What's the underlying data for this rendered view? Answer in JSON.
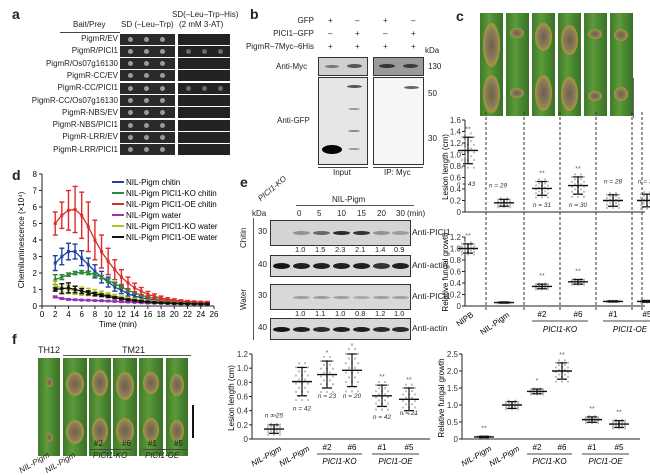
{
  "panels": {
    "a": {
      "label": "a",
      "header_baitprey": "Bait/Prey",
      "header_col1": "SD (–Leu–Trp)",
      "header_col2_line1": "SD(–Leu–Trp–His)",
      "header_col2_line2": "(2 mM 3-AT)",
      "rows": [
        {
          "label": "PigmR/EV",
          "growth_selective": false
        },
        {
          "label": "PigmR/PICI1",
          "growth_selective": true
        },
        {
          "label": "PigmR/Os07g16130",
          "growth_selective": false
        },
        {
          "label": "PigmR-CC/EV",
          "growth_selective": false
        },
        {
          "label": "PigmR-CC/PICI1",
          "growth_selective": true
        },
        {
          "label": "PigmR-CC/Os07g16130",
          "growth_selective": false
        },
        {
          "label": "PigmR-NBS/EV",
          "growth_selective": false
        },
        {
          "label": "PigmR-NBS/PICI1",
          "growth_selective": false
        },
        {
          "label": "PigmR-LRR/EV",
          "growth_selective": false
        },
        {
          "label": "PigmR-LRR/PICI1",
          "growth_selective": false
        }
      ]
    },
    "b": {
      "label": "b",
      "row_labels": [
        "GFP",
        "PICI1–GFP",
        "PigmR–7Myc–6His"
      ],
      "signs": [
        [
          "+",
          "–",
          "+",
          "–"
        ],
        [
          "–",
          "+",
          "–",
          "+"
        ],
        [
          "+",
          "+",
          "+",
          "+"
        ]
      ],
      "kda_label": "kDa",
      "markers": [
        "130",
        "50",
        "30"
      ],
      "blot_labels": [
        "Anti-Myc",
        "Anti-GFP"
      ],
      "bottom_labels": [
        "Input",
        "IP: Myc"
      ]
    },
    "c": {
      "label": "c",
      "lesion_chart": {
        "ylabel": "Lesion length (cm)",
        "yticks": [
          "0",
          "0.2",
          "0.4",
          "0.6",
          "0.8",
          "1.0",
          "1.2",
          "1.4",
          "1.6"
        ],
        "ylim": [
          0,
          1.6
        ]
      },
      "fungal_chart": {
        "ylabel": "Relative fungal growth",
        "yticks": [
          "0",
          "0.2",
          "0.4",
          "0.6",
          "0.8",
          "1.0",
          "1.2"
        ],
        "ylim": [
          0,
          1.2
        ]
      },
      "xlabels": [
        "NIPB",
        "NIL-Pigm",
        "#2",
        "#6",
        "#1",
        "#5"
      ],
      "group_labels": [
        "PICI1-KO",
        "PICI1-OE"
      ]
    },
    "d": {
      "label": "d",
      "xlabel": "Time (min)",
      "ylabel": "Chemiluminescence (×10⁴)"
    },
    "e": {
      "label": "e",
      "kda_label": "kDa",
      "ko_label": "PICI1-KO",
      "nil_label": "NIL-Pigm",
      "times": [
        "0",
        "5",
        "10",
        "15",
        "20",
        "30"
      ],
      "time_unit": "(min)",
      "chitin_label": "Chitin",
      "water_label": "Water",
      "markers": [
        "30",
        "40",
        "30",
        "40"
      ],
      "blot_labels": [
        "Anti-PICI1",
        "Anti-actin",
        "Anti-PICI1",
        "Anti-actin"
      ],
      "chitin_ratios": [
        "1.0",
        "1.5",
        "2.3",
        "2.1",
        "1.4",
        "0.9"
      ],
      "water_ratios": [
        "1.0",
        "1.1",
        "1.0",
        "0.8",
        "1.2",
        "1.0"
      ]
    },
    "f": {
      "label": "f",
      "th12": "TH12",
      "tm21": "TM21",
      "xlabels": [
        "NIL-Pigm",
        "NIL-Pigm",
        "#2",
        "#6",
        "#1",
        "#5"
      ],
      "group_labels": [
        "PICI1-KO",
        "PICI1-OE"
      ],
      "lesion_ylabel": "Lesion length (cm)",
      "lesion_yticks": [
        "0",
        "0.2",
        "0.4",
        "0.6",
        "0.8",
        "1.0",
        "1.2"
      ],
      "fungal_ylabel": "Relative fungal growth",
      "fungal_yticks": [
        "0",
        "0.5",
        "1.0",
        "1.5",
        "2.0",
        "2.5"
      ]
    }
  },
  "chart_data": [
    {
      "id": "c-lesion",
      "type": "scatter",
      "title": "",
      "xlabel": "",
      "ylabel": "Lesion length (cm)",
      "ylim": [
        0,
        1.6
      ],
      "categories": [
        "NIPB",
        "NIL-Pigm",
        "PICI1-KO #2",
        "PICI1-KO #6",
        "PICI1-OE #1",
        "PICI1-OE #5"
      ],
      "mean": [
        1.07,
        0.16,
        0.41,
        0.46,
        0.2,
        0.2
      ],
      "sd": [
        0.23,
        0.06,
        0.12,
        0.15,
        0.1,
        0.11
      ],
      "n": [
        "n = 43",
        "n = 29",
        "n = 31",
        "n = 30",
        "n = 28",
        "n = 38"
      ],
      "significance": [
        "**",
        "",
        "**",
        "**",
        "",
        ""
      ]
    },
    {
      "id": "c-fungal",
      "type": "scatter",
      "ylabel": "Relative fungal growth",
      "ylim": [
        0,
        1.2
      ],
      "categories": [
        "NIPB",
        "NIL-Pigm",
        "PICI1-KO #2",
        "PICI1-KO #6",
        "PICI1-OE #1",
        "PICI1-OE #5"
      ],
      "mean": [
        1.0,
        0.06,
        0.34,
        0.42,
        0.08,
        0.08
      ],
      "sd": [
        0.08,
        0.01,
        0.04,
        0.04,
        0.01,
        0.015
      ],
      "significance": [
        "**",
        "",
        "**",
        "**",
        "",
        ""
      ]
    },
    {
      "id": "d-chemiluminescence",
      "type": "line",
      "xlabel": "Time (min)",
      "ylabel": "Chemiluminescence (×10⁴)",
      "xlim": [
        0,
        26
      ],
      "ylim": [
        0,
        8
      ],
      "xticks": [
        "0",
        "2",
        "4",
        "6",
        "8",
        "10",
        "12",
        "14",
        "16",
        "18",
        "20",
        "22",
        "24",
        "26"
      ],
      "yticks": [
        "0",
        "1",
        "2",
        "3",
        "4",
        "5",
        "6",
        "7",
        "8"
      ],
      "legend_position": "top-right",
      "x": [
        2,
        3,
        4,
        5,
        6,
        7,
        8,
        9,
        10,
        11,
        12,
        13,
        14,
        15,
        16,
        17,
        18,
        19,
        20,
        21,
        22,
        23,
        24,
        25
      ],
      "series": [
        {
          "name": "NIL-Pigm chitin",
          "color": "#2340a0",
          "values": [
            2.6,
            3.0,
            3.3,
            3.3,
            2.9,
            2.5,
            2.1,
            1.75,
            1.45,
            1.15,
            0.95,
            0.75,
            0.6,
            0.5,
            0.42,
            0.35,
            0.3,
            0.25,
            0.22,
            0.2,
            0.18,
            0.16,
            0.15,
            0.14
          ],
          "err": [
            0.45,
            0.5,
            0.5,
            0.45,
            0.45,
            0.4,
            0.4,
            0.35,
            0.3,
            0.25,
            0.2,
            0.15,
            0.12,
            0.1,
            0.08,
            0.07,
            0.06,
            0.05,
            0.05,
            0.05,
            0.04,
            0.04,
            0.04,
            0.04
          ]
        },
        {
          "name": "NIL-Pigm PICI1-KO chitin",
          "color": "#2a8a3a",
          "values": [
            1.6,
            1.75,
            1.9,
            2.0,
            2.05,
            2.0,
            1.9,
            1.75,
            1.55,
            1.35,
            1.15,
            0.95,
            0.8,
            0.65,
            0.55,
            0.45,
            0.38,
            0.32,
            0.28,
            0.24,
            0.22,
            0.2,
            0.18,
            0.16
          ],
          "err": [
            0.3,
            0.15,
            0.1,
            0.1,
            0.1,
            0.1,
            0.1,
            0.1,
            0.1,
            0.1,
            0.08,
            0.08,
            0.06,
            0.05,
            0.05,
            0.04,
            0.04,
            0.03,
            0.03,
            0.03,
            0.03,
            0.03,
            0.03,
            0.03
          ]
        },
        {
          "name": "NIL-Pigm PICI1-OE chitin",
          "color": "#e02a2a",
          "values": [
            5.0,
            5.5,
            5.8,
            5.85,
            5.5,
            4.8,
            4.0,
            3.3,
            2.7,
            2.2,
            1.75,
            1.4,
            1.1,
            0.9,
            0.7,
            0.58,
            0.48,
            0.4,
            0.35,
            0.3,
            0.27,
            0.25,
            0.23,
            0.22
          ],
          "err": [
            0.7,
            0.8,
            1.2,
            1.4,
            1.4,
            1.5,
            1.2,
            1.0,
            0.8,
            0.6,
            0.45,
            0.35,
            0.28,
            0.22,
            0.18,
            0.15,
            0.12,
            0.1,
            0.08,
            0.07,
            0.06,
            0.05,
            0.05,
            0.05
          ]
        },
        {
          "name": "NIL-Pigm water",
          "color": "#9a30b0",
          "values": [
            0.55,
            0.45,
            0.4,
            0.38,
            0.36,
            0.35,
            0.33,
            0.32,
            0.3,
            0.28,
            0.26,
            0.24,
            0.22,
            0.2,
            0.18,
            0.17,
            0.16,
            0.15,
            0.14,
            0.13,
            0.12,
            0.12,
            0.11,
            0.11
          ],
          "err": [
            0.05,
            0.04,
            0.04,
            0.03,
            0.03,
            0.03,
            0.03,
            0.03,
            0.03,
            0.03,
            0.03,
            0.02,
            0.02,
            0.02,
            0.02,
            0.02,
            0.02,
            0.02,
            0.02,
            0.02,
            0.02,
            0.02,
            0.02,
            0.02
          ]
        },
        {
          "name": "NIL-Pigm PICI1-KO water",
          "color": "#b8c020",
          "values": [
            1.25,
            1.1,
            1.0,
            0.95,
            0.9,
            0.85,
            0.8,
            0.75,
            0.68,
            0.6,
            0.52,
            0.45,
            0.4,
            0.35,
            0.3,
            0.27,
            0.24,
            0.21,
            0.19,
            0.17,
            0.15,
            0.14,
            0.13,
            0.12
          ],
          "err": [
            0.25,
            0.25,
            0.25,
            0.25,
            0.25,
            0.22,
            0.2,
            0.15,
            0.12,
            0.1,
            0.08,
            0.07,
            0.06,
            0.05,
            0.05,
            0.04,
            0.04,
            0.03,
            0.03,
            0.03,
            0.03,
            0.03,
            0.03,
            0.03
          ]
        },
        {
          "name": "NIL-Pigm PICI1-OE water",
          "color": "#111111",
          "values": [
            1.0,
            1.05,
            1.1,
            1.0,
            0.9,
            0.8,
            0.72,
            0.65,
            0.58,
            0.5,
            0.44,
            0.38,
            0.33,
            0.29,
            0.25,
            0.22,
            0.2,
            0.18,
            0.16,
            0.15,
            0.14,
            0.13,
            0.12,
            0.12
          ],
          "err": [
            0.1,
            0.3,
            0.3,
            0.2,
            0.15,
            0.12,
            0.1,
            0.08,
            0.07,
            0.06,
            0.05,
            0.05,
            0.04,
            0.04,
            0.03,
            0.03,
            0.03,
            0.03,
            0.03,
            0.03,
            0.03,
            0.03,
            0.03,
            0.03
          ]
        }
      ]
    },
    {
      "id": "f-lesion",
      "type": "scatter",
      "ylabel": "Lesion length (cm)",
      "ylim": [
        0,
        1.2
      ],
      "categories": [
        "TH12 NIL-Pigm",
        "TM21 NIL-Pigm",
        "PICI1-KO #2",
        "PICI1-KO #6",
        "PICI1-OE #1",
        "PICI1-OE #5"
      ],
      "mean": [
        0.14,
        0.81,
        0.91,
        0.97,
        0.61,
        0.56
      ],
      "sd": [
        0.06,
        0.2,
        0.19,
        0.23,
        0.15,
        0.16
      ],
      "n": [
        "n = 25",
        "n = 42",
        "n = 23",
        "n = 20",
        "n = 42",
        "n = 21"
      ],
      "significance": [
        "**",
        "",
        "*",
        "*",
        "**",
        "**"
      ]
    },
    {
      "id": "f-fungal",
      "type": "scatter",
      "ylabel": "Relative fungal growth",
      "ylim": [
        0,
        2.5
      ],
      "categories": [
        "TH12 NIL-Pigm",
        "TM21 NIL-Pigm",
        "PICI1-KO #2",
        "PICI1-KO #6",
        "PICI1-OE #1",
        "PICI1-OE #5"
      ],
      "mean": [
        0.06,
        1.0,
        1.4,
        2.0,
        0.57,
        0.44
      ],
      "sd": [
        0.02,
        0.1,
        0.07,
        0.24,
        0.08,
        0.1
      ],
      "significance": [
        "**",
        "",
        "*",
        "**",
        "**",
        "**"
      ]
    }
  ]
}
